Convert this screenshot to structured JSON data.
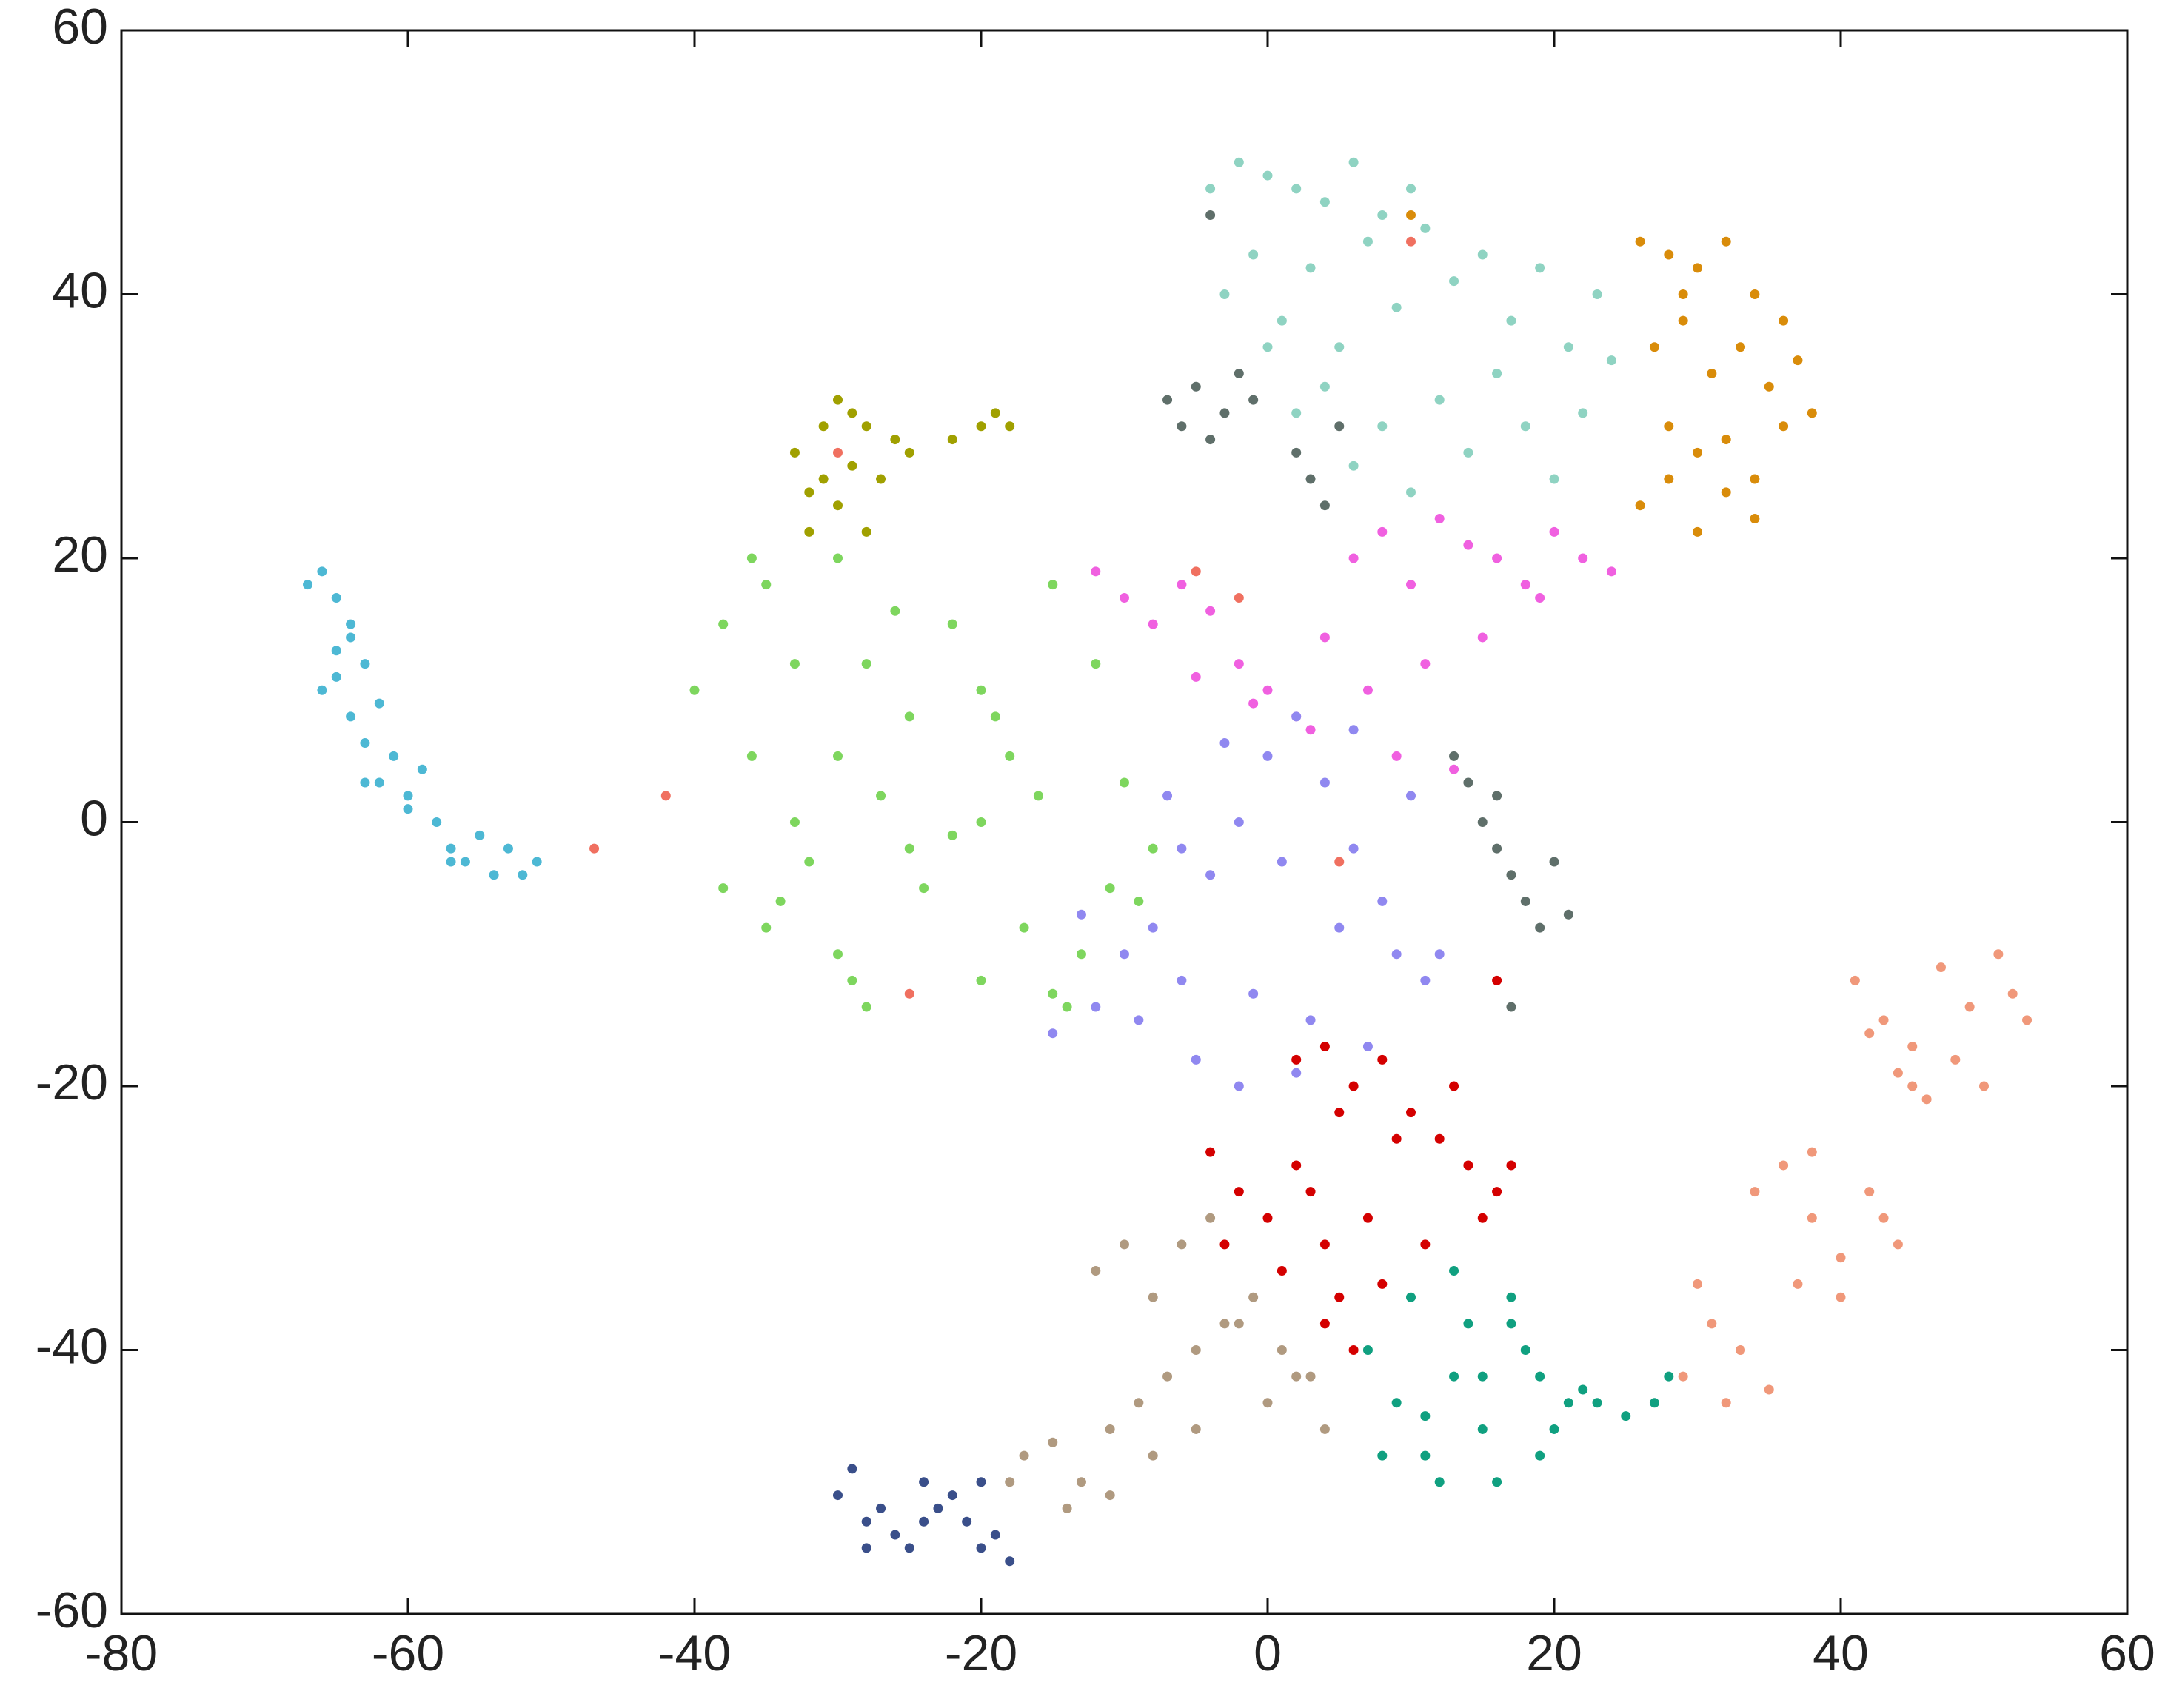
{
  "chart_data": {
    "type": "scatter",
    "xlim": [
      -80,
      60
    ],
    "xticks": [
      -80,
      -60,
      -40,
      -20,
      0,
      20,
      40,
      60
    ],
    "ylim": [
      -60,
      60
    ],
    "yticks": [
      -60,
      -40,
      -20,
      0,
      20,
      40,
      60
    ],
    "grid": false,
    "series": [
      {
        "color": "#4db8d4",
        "x": [
          -67,
          -66,
          -65,
          -64,
          -65,
          -63,
          -66,
          -64,
          -62,
          -63,
          -65,
          -61,
          -62,
          -60,
          -63,
          -64,
          -58,
          -57,
          -56,
          -55,
          -53,
          -52,
          -51,
          -54,
          -57,
          -60,
          -59
        ],
        "values": [
          18,
          19,
          17,
          15,
          13,
          12,
          10,
          8,
          9,
          6,
          11,
          5,
          3,
          2,
          3,
          14,
          0,
          -2,
          -3,
          -1,
          -2,
          -4,
          -3,
          -4,
          -3,
          1,
          4
        ]
      },
      {
        "color": "#7ed65e",
        "x": [
          -40,
          -38,
          -36,
          -35,
          -33,
          -30,
          -28,
          -25,
          -22,
          -20,
          -18,
          -15,
          -12,
          -10,
          -8,
          -38,
          -35,
          -32,
          -30,
          -27,
          -24,
          -20,
          -17,
          -14,
          -11,
          -36,
          -33,
          -29,
          -26,
          -22,
          -19,
          -16,
          -13,
          -9,
          -30,
          -25,
          -20,
          -15,
          -34,
          -28
        ],
        "values": [
          10,
          15,
          5,
          18,
          0,
          20,
          12,
          8,
          15,
          10,
          5,
          18,
          12,
          3,
          -2,
          -5,
          -8,
          -3,
          -10,
          2,
          -5,
          -12,
          -8,
          -14,
          -5,
          20,
          12,
          -12,
          16,
          -1,
          8,
          2,
          -10,
          -6,
          5,
          -2,
          0,
          -13,
          -6,
          -14
        ]
      },
      {
        "color": "#a0a000",
        "x": [
          -33,
          -32,
          -31,
          -30,
          -29,
          -28,
          -27,
          -26,
          -30,
          -32,
          -28,
          -25,
          -29,
          -22,
          -20,
          -19,
          -18,
          -31
        ],
        "values": [
          28,
          25,
          30,
          32,
          27,
          30,
          26,
          29,
          24,
          22,
          22,
          28,
          31,
          29,
          30,
          31,
          30,
          26
        ]
      },
      {
        "color": "#8fd3c2",
        "x": [
          -4,
          -2,
          0,
          2,
          4,
          6,
          8,
          10,
          -3,
          -1,
          1,
          3,
          5,
          7,
          9,
          11,
          13,
          15,
          17,
          19,
          21,
          23,
          24,
          12,
          14,
          16,
          18,
          20,
          22,
          10,
          8,
          6,
          4,
          2,
          0
        ],
        "values": [
          48,
          50,
          49,
          48,
          47,
          50,
          46,
          48,
          40,
          43,
          38,
          42,
          36,
          44,
          39,
          45,
          41,
          43,
          38,
          42,
          36,
          40,
          35,
          32,
          28,
          34,
          30,
          26,
          31,
          25,
          30,
          27,
          33,
          31,
          36
        ]
      },
      {
        "color": "#d98c0a",
        "x": [
          26,
          28,
          30,
          32,
          34,
          36,
          27,
          29,
          31,
          33,
          35,
          37,
          38,
          28,
          30,
          32,
          34,
          36,
          26,
          28,
          30,
          32,
          34,
          29,
          10
        ],
        "values": [
          44,
          43,
          42,
          44,
          40,
          38,
          36,
          38,
          34,
          36,
          33,
          35,
          31,
          30,
          28,
          29,
          26,
          30,
          24,
          26,
          22,
          25,
          23,
          40,
          46
        ]
      },
      {
        "color": "#5f6f6a",
        "x": [
          -7,
          -6,
          -5,
          -4,
          -3,
          -2,
          -1,
          2,
          3,
          4,
          5,
          13,
          14,
          15,
          16,
          17,
          18,
          19,
          20,
          21,
          17,
          16,
          -4
        ],
        "values": [
          32,
          30,
          33,
          29,
          31,
          34,
          32,
          28,
          26,
          24,
          30,
          5,
          3,
          0,
          -2,
          -4,
          -6,
          -8,
          -3,
          -7,
          -14,
          2,
          46
        ]
      },
      {
        "color": "#f060e0",
        "x": [
          -12,
          -10,
          -8,
          -6,
          -4,
          -2,
          0,
          2,
          4,
          6,
          8,
          10,
          12,
          14,
          16,
          18,
          20,
          22,
          24,
          -5,
          -1,
          3,
          7,
          11,
          15,
          19,
          9,
          13
        ],
        "values": [
          19,
          17,
          15,
          18,
          16,
          12,
          10,
          8,
          14,
          20,
          22,
          18,
          23,
          21,
          20,
          18,
          22,
          20,
          19,
          11,
          9,
          7,
          10,
          12,
          14,
          17,
          5,
          4
        ]
      },
      {
        "color": "#9088f0",
        "x": [
          -15,
          -12,
          -10,
          -8,
          -6,
          -4,
          -2,
          0,
          2,
          4,
          6,
          8,
          10,
          12,
          -13,
          -9,
          -5,
          -1,
          3,
          7,
          11,
          -7,
          -3,
          1,
          5,
          9,
          -2,
          2,
          -6,
          6
        ],
        "values": [
          -16,
          -14,
          -10,
          -8,
          -12,
          -4,
          0,
          5,
          8,
          3,
          -2,
          -6,
          2,
          -10,
          -7,
          -15,
          -18,
          -13,
          -15,
          -17,
          -12,
          2,
          6,
          -3,
          -8,
          -10,
          -20,
          -19,
          -2,
          7
        ]
      },
      {
        "color": "#d40000",
        "x": [
          -4,
          -2,
          0,
          2,
          4,
          6,
          8,
          10,
          12,
          14,
          16,
          -3,
          1,
          3,
          5,
          7,
          9,
          11,
          13,
          15,
          17,
          2,
          4,
          6,
          8,
          5,
          4,
          16
        ],
        "values": [
          -25,
          -28,
          -30,
          -26,
          -32,
          -20,
          -18,
          -22,
          -24,
          -26,
          -28,
          -32,
          -34,
          -28,
          -36,
          -30,
          -24,
          -32,
          -20,
          -30,
          -26,
          -18,
          -38,
          -40,
          -35,
          -22,
          -17,
          -12
        ]
      },
      {
        "color": "#b09a80",
        "x": [
          -17,
          -15,
          -13,
          -11,
          -9,
          -7,
          -5,
          -3,
          -1,
          1,
          3,
          -12,
          -10,
          -8,
          -6,
          -4,
          -2,
          0,
          2,
          4,
          -14,
          -11,
          -8,
          -5,
          -18
        ],
        "values": [
          -48,
          -47,
          -50,
          -46,
          -44,
          -42,
          -40,
          -38,
          -36,
          -40,
          -42,
          -34,
          -32,
          -36,
          -32,
          -30,
          -38,
          -44,
          -42,
          -46,
          -52,
          -51,
          -48,
          -46,
          -50
        ]
      },
      {
        "color": "#3a4f8a",
        "x": [
          -30,
          -29,
          -28,
          -27,
          -26,
          -25,
          -24,
          -23,
          -22,
          -21,
          -20,
          -19,
          -18,
          -28,
          -24,
          -20
        ],
        "values": [
          -51,
          -49,
          -53,
          -52,
          -54,
          -55,
          -53,
          -52,
          -51,
          -53,
          -55,
          -54,
          -56,
          -55,
          -50,
          -50
        ]
      },
      {
        "color": "#10a080",
        "x": [
          7,
          9,
          11,
          13,
          15,
          17,
          19,
          21,
          23,
          25,
          27,
          10,
          12,
          14,
          16,
          18,
          20,
          8,
          11,
          15,
          19,
          13,
          17,
          22,
          28
        ],
        "values": [
          -40,
          -44,
          -48,
          -42,
          -46,
          -38,
          -42,
          -44,
          -44,
          -45,
          -44,
          -36,
          -50,
          -38,
          -50,
          -40,
          -46,
          -48,
          -45,
          -42,
          -48,
          -34,
          -36,
          -43,
          -42
        ]
      },
      {
        "color": "#f0987a",
        "x": [
          41,
          43,
          45,
          47,
          49,
          51,
          53,
          44,
          46,
          48,
          50,
          52,
          42,
          45,
          36,
          38,
          40,
          42,
          44,
          34,
          37,
          40,
          43,
          29,
          31,
          33,
          35,
          30,
          32,
          38
        ],
        "values": [
          -12,
          -15,
          -17,
          -11,
          -14,
          -10,
          -15,
          -19,
          -21,
          -18,
          -20,
          -13,
          -16,
          -20,
          -26,
          -30,
          -33,
          -28,
          -32,
          -28,
          -35,
          -36,
          -30,
          -42,
          -38,
          -40,
          -43,
          -35,
          -44,
          -25
        ]
      },
      {
        "color": "#f07060",
        "x": [
          -47,
          -42,
          -25,
          -5,
          -2,
          5,
          -30,
          10
        ],
        "values": [
          -2,
          2,
          -13,
          19,
          17,
          -3,
          28,
          44
        ]
      }
    ]
  }
}
